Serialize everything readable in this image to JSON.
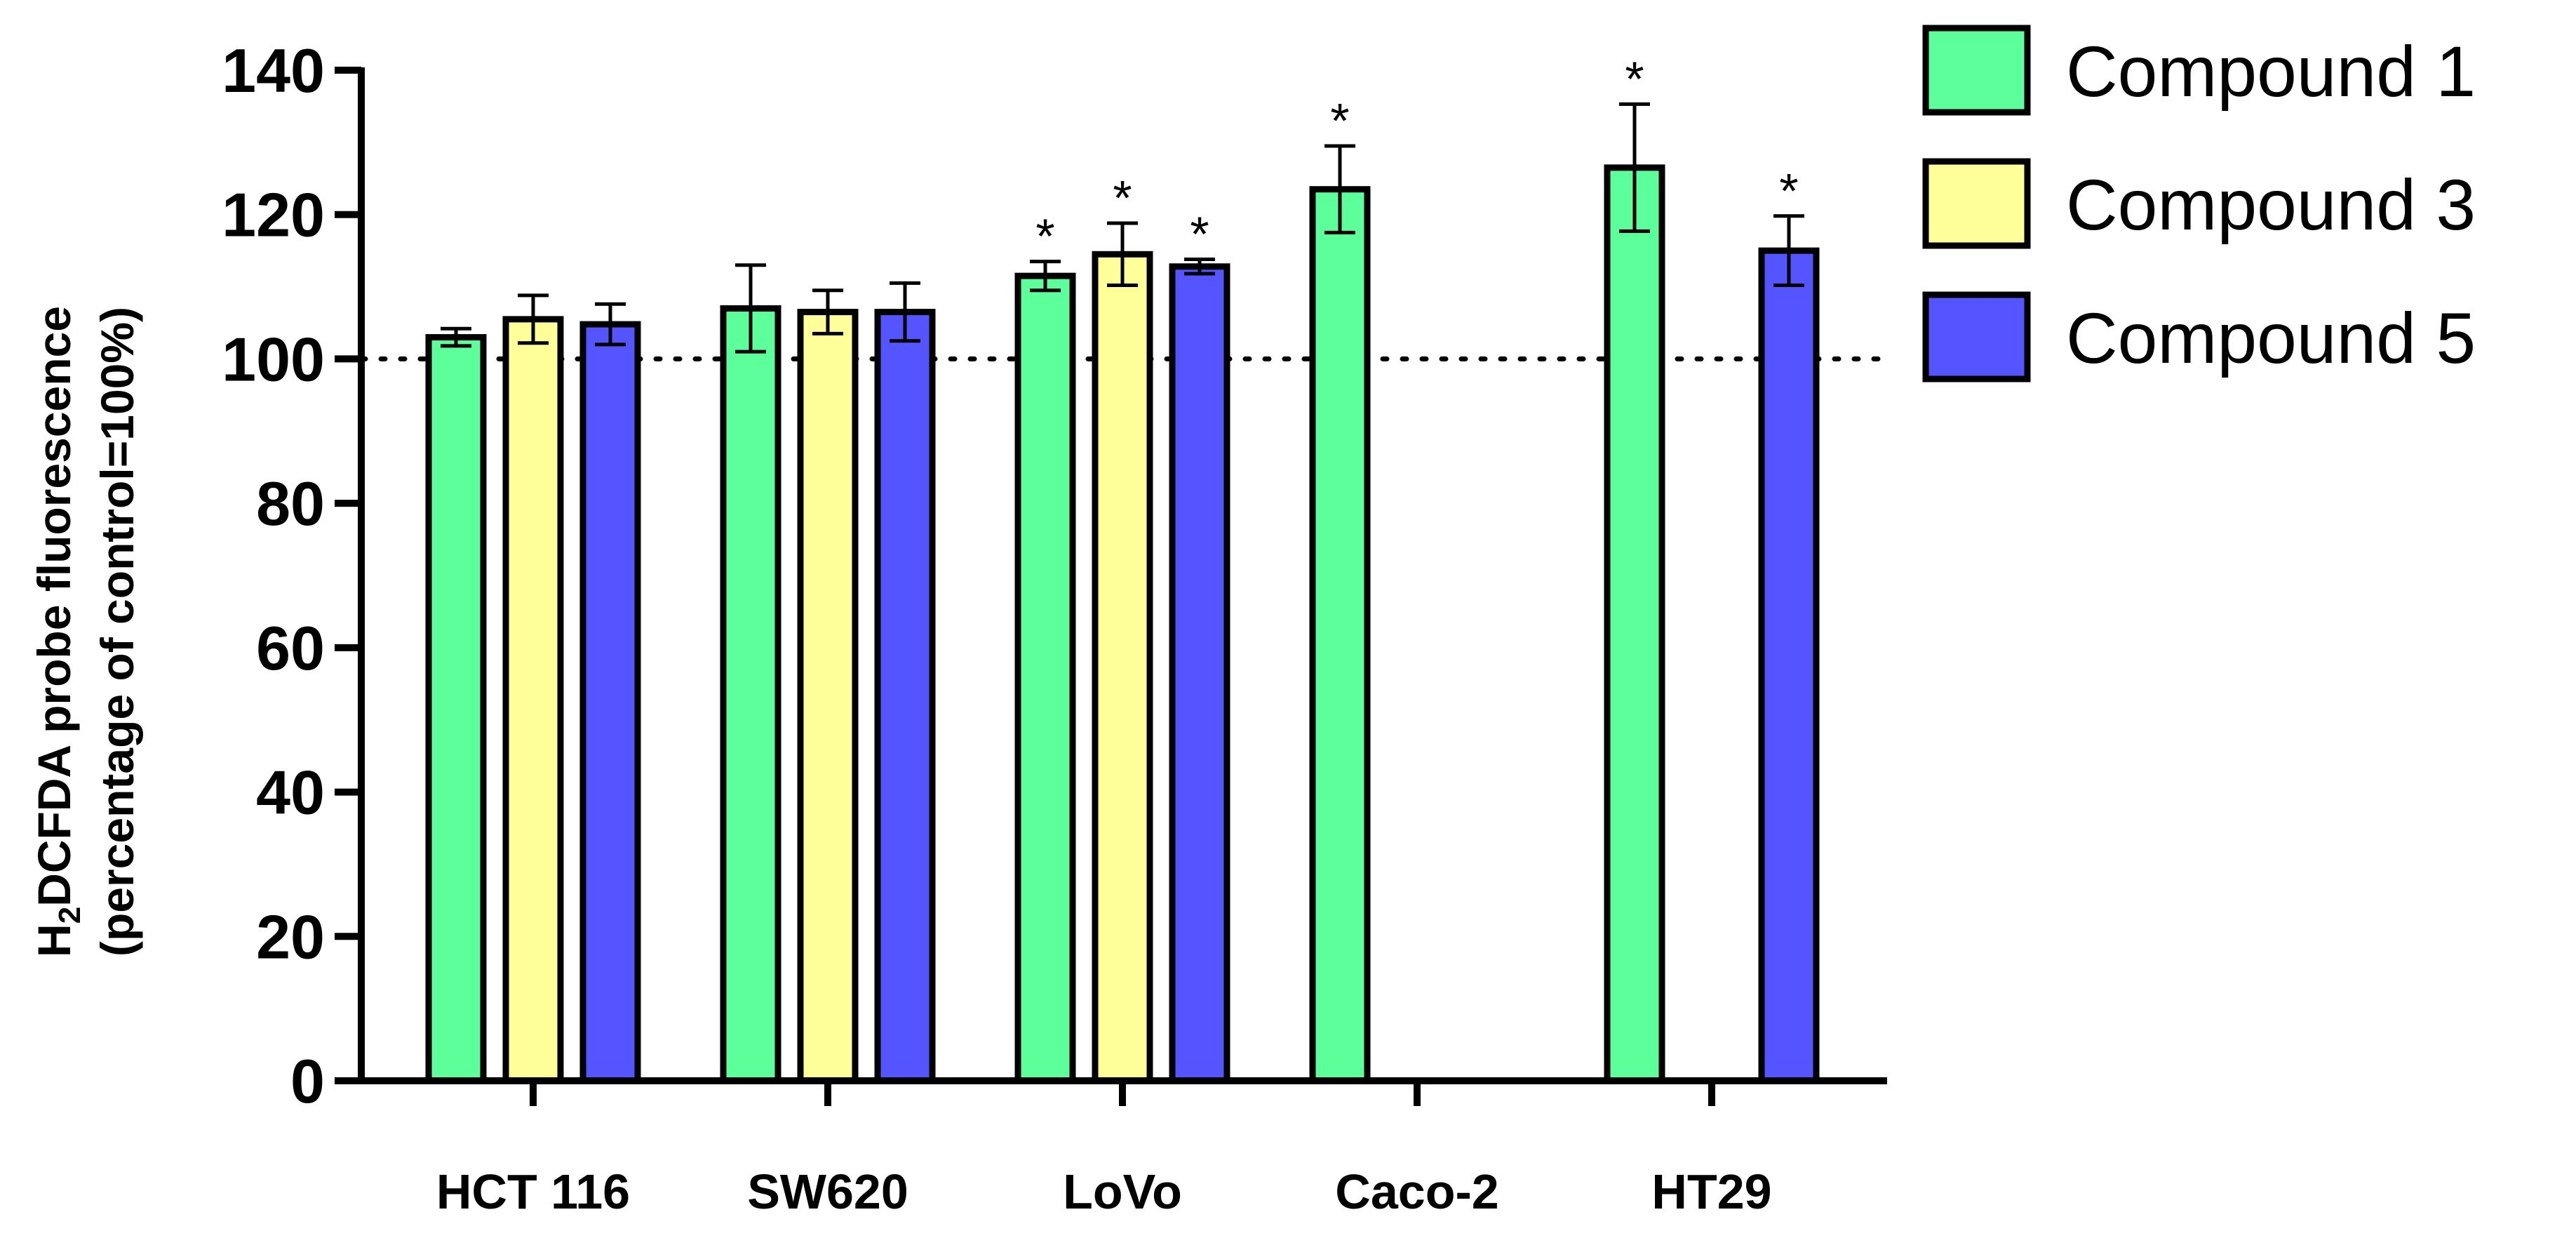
{
  "chart_data": {
    "type": "bar",
    "ylabel_main": "H",
    "ylabel_sub": "2",
    "ylabel_rest": "DCFDA probe fluorescence",
    "ylabel_line2": "(percentage of control=100%)",
    "ylim": [
      0,
      140
    ],
    "yticks": [
      0,
      20,
      40,
      60,
      80,
      100,
      120,
      140
    ],
    "reference_line": 100,
    "legend_position": "top-right",
    "categories": [
      "HCT 116",
      "SW620",
      "LoVo",
      "Caco-2",
      "HT29"
    ],
    "series": [
      {
        "name": "Compound 1",
        "color": "#5CFF99",
        "values": [
          103,
          107,
          111.5,
          123.5,
          126.5
        ],
        "errors": [
          1.2,
          6,
          2,
          6,
          8.8
        ],
        "significant": [
          false,
          false,
          true,
          true,
          true
        ]
      },
      {
        "name": "Compound 3",
        "color": "#FFFF99",
        "values": [
          105.5,
          106.5,
          114.5,
          null,
          null
        ],
        "errors": [
          3.3,
          3,
          4.3,
          null,
          null
        ],
        "significant": [
          false,
          false,
          true,
          false,
          false
        ]
      },
      {
        "name": "Compound 5",
        "color": "#5555FF",
        "values": [
          104.8,
          106.5,
          112.8,
          null,
          115
        ],
        "errors": [
          2.8,
          4,
          1,
          null,
          4.8
        ],
        "significant": [
          false,
          false,
          true,
          false,
          true
        ]
      }
    ],
    "significance_marker": "*"
  }
}
